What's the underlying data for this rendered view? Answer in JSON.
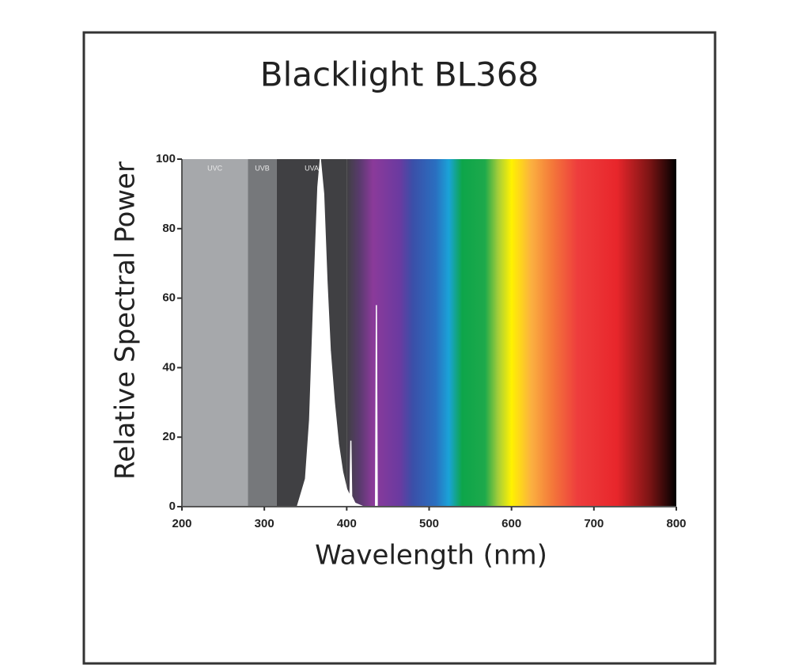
{
  "chart_data": {
    "type": "area",
    "title": "Blacklight BL368",
    "x_label": "Wavelength (nm)",
    "y_label": "Relative Spectral Power",
    "xlim": [
      200,
      800
    ],
    "xticks": [
      200,
      300,
      400,
      500,
      600,
      700,
      800
    ],
    "ylim": [
      0,
      100
    ],
    "yticks": [
      0,
      20,
      40,
      60,
      80,
      100
    ],
    "regions": [
      {
        "label": "UVC",
        "from": 200,
        "to": 280,
        "color": "#a6a8ab"
      },
      {
        "label": "UVB",
        "from": 280,
        "to": 315,
        "color": "#76787b"
      },
      {
        "label": "UVA",
        "from": 315,
        "to": 400,
        "color": "#404043"
      }
    ],
    "series": [
      {
        "color": "#ffffff",
        "x": [
          340,
          350,
          355,
          360,
          365,
          368,
          372,
          376,
          380,
          385,
          390,
          395,
          400,
          404,
          405,
          406,
          410,
          420,
          435,
          436,
          437,
          440
        ],
        "values": [
          0,
          8,
          25,
          60,
          92,
          100,
          90,
          65,
          45,
          30,
          18,
          10,
          5,
          3,
          19,
          3,
          1,
          0,
          0,
          58,
          0,
          0
        ]
      }
    ]
  }
}
